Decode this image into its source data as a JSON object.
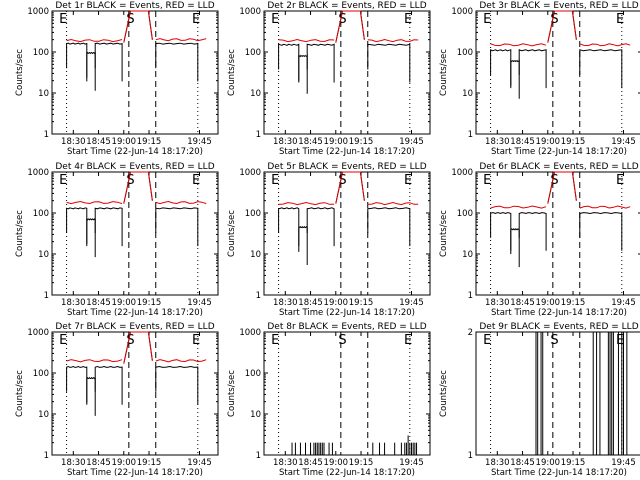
{
  "chart_data": [
    {
      "type": "line",
      "title": "Det 1r BLACK = Events, RED = LLD",
      "xlabel": "Start Time (22-Jun-14 18:17:20)",
      "ylabel": "Counts/sec",
      "yscale": "log",
      "ylim": [
        1,
        1000
      ],
      "xticks": [
        "18:30",
        "18:45",
        "19:00",
        "19:15",
        "19:45"
      ],
      "markers": [
        "E",
        "S",
        "E"
      ],
      "series": [
        {
          "name": "Events",
          "color": "#000000",
          "values": [
            {
              "from": "18:26",
              "to": "18:38",
              "y": 160
            },
            {
              "from": "18:38",
              "to": "18:43",
              "y": 95
            },
            {
              "from": "18:43",
              "to": "18:59",
              "y": 160
            },
            {
              "from": "19:19",
              "to": "19:44",
              "y": 160
            }
          ]
        },
        {
          "name": "LLD",
          "color": "#e00000",
          "values": [
            {
              "from": "18:26",
              "to": "18:59",
              "y": 190
            },
            {
              "from": "19:19",
              "to": "19:49",
              "y": 200
            }
          ]
        }
      ]
    },
    {
      "type": "line",
      "title": "Det 2r BLACK = Events, RED = LLD",
      "xlabel": "Start Time (22-Jun-14 18:17:20)",
      "ylabel": "Counts/sec",
      "yscale": "log",
      "ylim": [
        1,
        1000
      ],
      "xticks": [
        "18:30",
        "18:45",
        "19:00",
        "19:15",
        "19:45"
      ],
      "markers": [
        "E",
        "S",
        "E"
      ],
      "series": [
        {
          "name": "Events",
          "color": "#000000",
          "values": [
            {
              "from": "18:26",
              "to": "18:38",
              "y": 150
            },
            {
              "from": "18:38",
              "to": "18:43",
              "y": 80
            },
            {
              "from": "18:43",
              "to": "18:59",
              "y": 150
            },
            {
              "from": "19:19",
              "to": "19:44",
              "y": 150
            }
          ]
        },
        {
          "name": "LLD",
          "color": "#e00000",
          "values": [
            {
              "from": "18:26",
              "to": "18:59",
              "y": 190
            },
            {
              "from": "19:19",
              "to": "19:49",
              "y": 190
            }
          ]
        }
      ]
    },
    {
      "type": "line",
      "title": "Det 3r BLACK = Events, RED = LLD",
      "xlabel": "Start Time (22-Jun-14 18:17:20)",
      "ylabel": "Counts/sec",
      "yscale": "log",
      "ylim": [
        1,
        1000
      ],
      "xticks": [
        "18:30",
        "18:45",
        "19:00",
        "19:15",
        "19:45"
      ],
      "markers": [
        "E",
        "S",
        "E"
      ],
      "series": [
        {
          "name": "Events",
          "color": "#000000",
          "values": [
            {
              "from": "18:26",
              "to": "18:38",
              "y": 110
            },
            {
              "from": "18:38",
              "to": "18:43",
              "y": 60
            },
            {
              "from": "18:43",
              "to": "18:59",
              "y": 110
            },
            {
              "from": "19:19",
              "to": "19:44",
              "y": 110
            }
          ]
        },
        {
          "name": "LLD",
          "color": "#e00000",
          "values": [
            {
              "from": "18:26",
              "to": "18:59",
              "y": 150
            },
            {
              "from": "19:19",
              "to": "19:49",
              "y": 150
            }
          ]
        }
      ]
    },
    {
      "type": "line",
      "title": "Det 4r BLACK = Events, RED = LLD",
      "xlabel": "Start Time (22-Jun-14 18:17:20)",
      "ylabel": "Counts/sec",
      "yscale": "log",
      "ylim": [
        1,
        1000
      ],
      "xticks": [
        "18:30",
        "18:45",
        "19:00",
        "19:15",
        "19:45"
      ],
      "markers": [
        "E",
        "S",
        "E"
      ],
      "series": [
        {
          "name": "Events",
          "color": "#000000",
          "values": [
            {
              "from": "18:26",
              "to": "18:38",
              "y": 130
            },
            {
              "from": "18:38",
              "to": "18:43",
              "y": 70
            },
            {
              "from": "18:43",
              "to": "18:59",
              "y": 130
            },
            {
              "from": "19:19",
              "to": "19:44",
              "y": 130
            }
          ]
        },
        {
          "name": "LLD",
          "color": "#e00000",
          "values": [
            {
              "from": "18:26",
              "to": "18:59",
              "y": 180
            },
            {
              "from": "19:19",
              "to": "19:49",
              "y": 180
            }
          ]
        }
      ]
    },
    {
      "type": "line",
      "title": "Det 5r BLACK = Events, RED = LLD",
      "xlabel": "Start Time (22-Jun-14 18:17:20)",
      "ylabel": "Counts/sec",
      "yscale": "log",
      "ylim": [
        1,
        1000
      ],
      "xticks": [
        "18:30",
        "18:45",
        "19:00",
        "19:15",
        "19:45"
      ],
      "markers": [
        "E",
        "S",
        "E"
      ],
      "series": [
        {
          "name": "Events",
          "color": "#000000",
          "values": [
            {
              "from": "18:26",
              "to": "18:38",
              "y": 130
            },
            {
              "from": "18:38",
              "to": "18:43",
              "y": 45
            },
            {
              "from": "18:43",
              "to": "18:59",
              "y": 130
            },
            {
              "from": "19:19",
              "to": "19:44",
              "y": 130
            }
          ]
        },
        {
          "name": "LLD",
          "color": "#e00000",
          "values": [
            {
              "from": "18:26",
              "to": "18:59",
              "y": 170
            },
            {
              "from": "19:19",
              "to": "19:49",
              "y": 170
            }
          ]
        }
      ]
    },
    {
      "type": "line",
      "title": "Det 6r BLACK = Events, RED = LLD",
      "xlabel": "Start Time (22-Jun-14 18:17:20)",
      "ylabel": "Counts/sec",
      "yscale": "log",
      "ylim": [
        1,
        1000
      ],
      "xticks": [
        "18:30",
        "18:45",
        "19:00",
        "19:15",
        "19:45"
      ],
      "markers": [
        "E",
        "S",
        "E"
      ],
      "series": [
        {
          "name": "Events",
          "color": "#000000",
          "values": [
            {
              "from": "18:26",
              "to": "18:38",
              "y": 100
            },
            {
              "from": "18:38",
              "to": "18:43",
              "y": 40
            },
            {
              "from": "18:43",
              "to": "18:59",
              "y": 100
            },
            {
              "from": "19:19",
              "to": "19:44",
              "y": 100
            }
          ]
        },
        {
          "name": "LLD",
          "color": "#e00000",
          "values": [
            {
              "from": "18:26",
              "to": "18:59",
              "y": 140
            },
            {
              "from": "19:19",
              "to": "19:49",
              "y": 140
            }
          ]
        }
      ]
    },
    {
      "type": "line",
      "title": "Det 7r BLACK = Events, RED = LLD",
      "xlabel": "Start Time (22-Jun-14 18:17:20)",
      "ylabel": "Counts/sec",
      "yscale": "log",
      "ylim": [
        1,
        1000
      ],
      "xticks": [
        "18:30",
        "18:45",
        "19:00",
        "19:15",
        "19:45"
      ],
      "markers": [
        "E",
        "S",
        "E"
      ],
      "series": [
        {
          "name": "Events",
          "color": "#000000",
          "values": [
            {
              "from": "18:26",
              "to": "18:38",
              "y": 140
            },
            {
              "from": "18:38",
              "to": "18:43",
              "y": 75
            },
            {
              "from": "18:43",
              "to": "18:59",
              "y": 140
            },
            {
              "from": "19:19",
              "to": "19:44",
              "y": 140
            }
          ]
        },
        {
          "name": "LLD",
          "color": "#e00000",
          "values": [
            {
              "from": "18:26",
              "to": "18:59",
              "y": 200
            },
            {
              "from": "19:19",
              "to": "19:49",
              "y": 200
            }
          ]
        }
      ]
    },
    {
      "type": "line",
      "title": "Det 8r BLACK = Events, RED = LLD",
      "xlabel": "Start Time (22-Jun-14 18:17:20)",
      "ylabel": "Counts/sec",
      "yscale": "log",
      "ylim": [
        1,
        1000
      ],
      "xticks": [
        "18:30",
        "18:45",
        "19:00",
        "19:15",
        "19:45"
      ],
      "markers": [
        "E",
        "S",
        "E"
      ],
      "series": [
        {
          "name": "Events",
          "color": "#000000",
          "spikes": [
            {
              "t": "18:34",
              "y": 2
            },
            {
              "t": "18:36",
              "y": 2
            },
            {
              "t": "18:39",
              "y": 2
            },
            {
              "t": "18:42",
              "y": 2
            },
            {
              "t": "18:45",
              "y": 2
            },
            {
              "t": "18:47",
              "y": 2
            },
            {
              "t": "18:48",
              "y": 2
            },
            {
              "t": "18:49",
              "y": 2
            },
            {
              "t": "18:50",
              "y": 2
            },
            {
              "t": "18:51",
              "y": 2
            },
            {
              "t": "18:52",
              "y": 2
            },
            {
              "t": "18:53",
              "y": 2
            },
            {
              "t": "18:56",
              "y": 2
            },
            {
              "t": "18:58",
              "y": 2
            },
            {
              "t": "19:22",
              "y": 2
            },
            {
              "t": "19:26",
              "y": 2
            },
            {
              "t": "19:29",
              "y": 2
            },
            {
              "t": "19:35",
              "y": 2
            },
            {
              "t": "19:39",
              "y": 2
            },
            {
              "t": "19:41",
              "y": 2
            },
            {
              "t": "19:42",
              "y": 2
            },
            {
              "t": "19:43",
              "y": 3
            },
            {
              "t": "19:44",
              "y": 2
            },
            {
              "t": "19:45",
              "y": 2
            },
            {
              "t": "19:46",
              "y": 2
            },
            {
              "t": "19:47",
              "y": 2
            },
            {
              "t": "19:48",
              "y": 2
            }
          ]
        }
      ]
    },
    {
      "type": "line",
      "title": "Det 9r BLACK = Events, RED = LLD",
      "xlabel": "Start Time (22-Jun-14 18:17:20)",
      "ylabel": "Counts/sec",
      "yscale": "log",
      "ylim": [
        1,
        2
      ],
      "xticks": [
        "18:30",
        "18:45",
        "19:00",
        "19:15",
        "19:45"
      ],
      "markers": [
        "E",
        "S",
        "E"
      ],
      "series": [
        {
          "name": "Events",
          "color": "#000000",
          "spikes": [
            {
              "t": "18:53",
              "y": 2
            },
            {
              "t": "18:54",
              "y": 2
            },
            {
              "t": "18:56",
              "y": 2
            },
            {
              "t": "18:57",
              "y": 2
            },
            {
              "t": "19:27",
              "y": 2
            },
            {
              "t": "19:29",
              "y": 2
            },
            {
              "t": "19:31",
              "y": 2
            },
            {
              "t": "19:36",
              "y": 2
            },
            {
              "t": "19:37",
              "y": 2
            },
            {
              "t": "19:38",
              "y": 2
            },
            {
              "t": "19:39",
              "y": 2
            },
            {
              "t": "19:42",
              "y": 2
            },
            {
              "t": "19:44",
              "y": 2
            },
            {
              "t": "19:45",
              "y": 2
            },
            {
              "t": "19:47",
              "y": 2
            }
          ]
        }
      ]
    }
  ]
}
